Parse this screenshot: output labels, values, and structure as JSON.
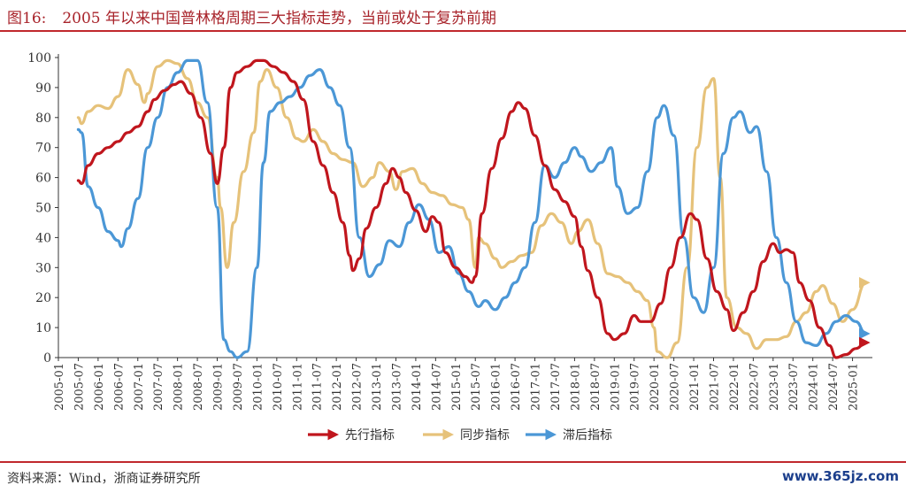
{
  "header": {
    "figure_no": "图16:",
    "title": "2005 年以来中国普林格周期三大指标走势，当前或处于复苏前期"
  },
  "footer": {
    "source": "资料来源：Wind，浙商证券研究所",
    "watermark": "www.365jz.com"
  },
  "colors": {
    "leading": "#c0161d",
    "coincident": "#e6c27a",
    "lagging": "#4b97d6",
    "title": "#a8232a",
    "axis": "#333333"
  },
  "chart_data": {
    "type": "line",
    "ylim": [
      0,
      100
    ],
    "yticks": [
      0,
      10,
      20,
      30,
      40,
      50,
      60,
      70,
      80,
      90,
      100
    ],
    "x_start": "2005-01",
    "x_end": "2025-07",
    "xticks": [
      "2005-01",
      "2005-07",
      "2006-01",
      "2006-07",
      "2007-01",
      "2007-07",
      "2008-01",
      "2008-07",
      "2009-01",
      "2009-07",
      "2010-01",
      "2010-07",
      "2011-01",
      "2011-07",
      "2012-01",
      "2012-07",
      "2013-01",
      "2013-07",
      "2014-01",
      "2014-07",
      "2015-01",
      "2015-07",
      "2016-01",
      "2016-07",
      "2017-01",
      "2017-07",
      "2018-01",
      "2018-07",
      "2019-01",
      "2019-07",
      "2020-01",
      "2020-07",
      "2021-01",
      "2021-07",
      "2022-01",
      "2022-07",
      "2023-01",
      "2023-07",
      "2024-01",
      "2024-07",
      "2025-01"
    ],
    "legend_position": "bottom-center",
    "series": [
      {
        "name": "先行指标",
        "color": "#c0161d",
        "arrow": true,
        "points": [
          [
            "2005-07",
            59
          ],
          [
            "2005-08",
            58
          ],
          [
            "2005-10",
            64
          ],
          [
            "2006-01",
            68
          ],
          [
            "2006-04",
            70
          ],
          [
            "2006-07",
            72
          ],
          [
            "2006-10",
            75
          ],
          [
            "2007-01",
            77
          ],
          [
            "2007-04",
            82
          ],
          [
            "2007-06",
            86
          ],
          [
            "2007-09",
            89
          ],
          [
            "2007-12",
            91
          ],
          [
            "2008-02",
            92
          ],
          [
            "2008-05",
            88
          ],
          [
            "2008-08",
            80
          ],
          [
            "2008-11",
            68
          ],
          [
            "2009-01",
            58
          ],
          [
            "2009-03",
            70
          ],
          [
            "2009-05",
            90
          ],
          [
            "2009-07",
            95
          ],
          [
            "2009-10",
            97
          ],
          [
            "2010-01",
            99
          ],
          [
            "2010-03",
            99
          ],
          [
            "2010-06",
            97
          ],
          [
            "2010-09",
            95
          ],
          [
            "2010-12",
            92
          ],
          [
            "2011-03",
            86
          ],
          [
            "2011-06",
            72
          ],
          [
            "2011-09",
            64
          ],
          [
            "2011-12",
            55
          ],
          [
            "2012-03",
            45
          ],
          [
            "2012-05",
            34
          ],
          [
            "2012-06",
            29
          ],
          [
            "2012-08",
            33
          ],
          [
            "2012-10",
            43
          ],
          [
            "2013-01",
            50
          ],
          [
            "2013-04",
            58
          ],
          [
            "2013-06",
            63
          ],
          [
            "2013-08",
            60
          ],
          [
            "2013-10",
            55
          ],
          [
            "2014-01",
            49
          ],
          [
            "2014-04",
            42
          ],
          [
            "2014-06",
            47
          ],
          [
            "2014-08",
            45
          ],
          [
            "2014-10",
            35
          ],
          [
            "2015-01",
            30
          ],
          [
            "2015-04",
            27
          ],
          [
            "2015-06",
            25
          ],
          [
            "2015-07",
            27
          ],
          [
            "2015-09",
            48
          ],
          [
            "2015-12",
            63
          ],
          [
            "2016-03",
            73
          ],
          [
            "2016-06",
            82
          ],
          [
            "2016-08",
            85
          ],
          [
            "2016-10",
            83
          ],
          [
            "2017-01",
            74
          ],
          [
            "2017-04",
            64
          ],
          [
            "2017-07",
            56
          ],
          [
            "2017-10",
            52
          ],
          [
            "2018-01",
            47
          ],
          [
            "2018-03",
            37
          ],
          [
            "2018-05",
            29
          ],
          [
            "2018-08",
            20
          ],
          [
            "2018-11",
            8
          ],
          [
            "2019-01",
            6
          ],
          [
            "2019-04",
            8
          ],
          [
            "2019-07",
            14
          ],
          [
            "2019-09",
            12
          ],
          [
            "2019-12",
            12
          ],
          [
            "2020-03",
            18
          ],
          [
            "2020-06",
            30
          ],
          [
            "2020-09",
            40
          ],
          [
            "2020-12",
            48
          ],
          [
            "2021-02",
            46
          ],
          [
            "2021-05",
            33
          ],
          [
            "2021-08",
            22
          ],
          [
            "2021-11",
            16
          ],
          [
            "2022-01",
            9
          ],
          [
            "2022-04",
            15
          ],
          [
            "2022-07",
            22
          ],
          [
            "2022-10",
            32
          ],
          [
            "2023-01",
            38
          ],
          [
            "2023-03",
            35
          ],
          [
            "2023-05",
            36
          ],
          [
            "2023-07",
            35
          ],
          [
            "2023-09",
            25
          ],
          [
            "2023-12",
            19
          ],
          [
            "2024-03",
            10
          ],
          [
            "2024-06",
            4
          ],
          [
            "2024-08",
            0
          ],
          [
            "2024-11",
            1
          ],
          [
            "2025-02",
            3
          ],
          [
            "2025-05",
            5
          ]
        ]
      },
      {
        "name": "同步指标",
        "color": "#e6c27a",
        "arrow": true,
        "points": [
          [
            "2005-07",
            80
          ],
          [
            "2005-08",
            78
          ],
          [
            "2005-10",
            82
          ],
          [
            "2006-01",
            84
          ],
          [
            "2006-04",
            83
          ],
          [
            "2006-07",
            87
          ],
          [
            "2006-10",
            96
          ],
          [
            "2007-01",
            91
          ],
          [
            "2007-03",
            85
          ],
          [
            "2007-04",
            88
          ],
          [
            "2007-07",
            97
          ],
          [
            "2007-10",
            99
          ],
          [
            "2008-01",
            98
          ],
          [
            "2008-04",
            93
          ],
          [
            "2008-07",
            85
          ],
          [
            "2008-10",
            80
          ],
          [
            "2009-01",
            60
          ],
          [
            "2009-02",
            50
          ],
          [
            "2009-04",
            30
          ],
          [
            "2009-06",
            45
          ],
          [
            "2009-09",
            62
          ],
          [
            "2009-12",
            75
          ],
          [
            "2010-02",
            92
          ],
          [
            "2010-04",
            96
          ],
          [
            "2010-07",
            90
          ],
          [
            "2010-10",
            80
          ],
          [
            "2011-01",
            73
          ],
          [
            "2011-03",
            72
          ],
          [
            "2011-06",
            76
          ],
          [
            "2011-09",
            72
          ],
          [
            "2011-12",
            68
          ],
          [
            "2012-03",
            66
          ],
          [
            "2012-06",
            65
          ],
          [
            "2012-09",
            57
          ],
          [
            "2012-12",
            60
          ],
          [
            "2013-02",
            65
          ],
          [
            "2013-05",
            62
          ],
          [
            "2013-07",
            56
          ],
          [
            "2013-09",
            62
          ],
          [
            "2013-12",
            63
          ],
          [
            "2014-03",
            58
          ],
          [
            "2014-06",
            55
          ],
          [
            "2014-09",
            54
          ],
          [
            "2014-12",
            51
          ],
          [
            "2015-03",
            50
          ],
          [
            "2015-05",
            46
          ],
          [
            "2015-07",
            30
          ],
          [
            "2015-08",
            40
          ],
          [
            "2015-10",
            38
          ],
          [
            "2016-01",
            33
          ],
          [
            "2016-03",
            30
          ],
          [
            "2016-06",
            32
          ],
          [
            "2016-09",
            34
          ],
          [
            "2016-12",
            35
          ],
          [
            "2017-03",
            44
          ],
          [
            "2017-06",
            48
          ],
          [
            "2017-09",
            45
          ],
          [
            "2017-12",
            38
          ],
          [
            "2018-02",
            42
          ],
          [
            "2018-05",
            46
          ],
          [
            "2018-08",
            38
          ],
          [
            "2018-11",
            28
          ],
          [
            "2019-02",
            27
          ],
          [
            "2019-05",
            25
          ],
          [
            "2019-08",
            22
          ],
          [
            "2019-11",
            19
          ],
          [
            "2020-01",
            10
          ],
          [
            "2020-02",
            2
          ],
          [
            "2020-05",
            0
          ],
          [
            "2020-08",
            5
          ],
          [
            "2020-11",
            30
          ],
          [
            "2021-02",
            70
          ],
          [
            "2021-05",
            90
          ],
          [
            "2021-07",
            93
          ],
          [
            "2021-09",
            60
          ],
          [
            "2021-11",
            20
          ],
          [
            "2022-02",
            10
          ],
          [
            "2022-05",
            8
          ],
          [
            "2022-08",
            3
          ],
          [
            "2022-11",
            6
          ],
          [
            "2023-02",
            6
          ],
          [
            "2023-05",
            7
          ],
          [
            "2023-08",
            12
          ],
          [
            "2023-11",
            15
          ],
          [
            "2024-02",
            22
          ],
          [
            "2024-04",
            24
          ],
          [
            "2024-07",
            18
          ],
          [
            "2024-10",
            12
          ],
          [
            "2025-01",
            16
          ],
          [
            "2025-05",
            25
          ]
        ]
      },
      {
        "name": "滞后指标",
        "color": "#4b97d6",
        "arrow": true,
        "points": [
          [
            "2005-07",
            76
          ],
          [
            "2005-08",
            75
          ],
          [
            "2005-10",
            57
          ],
          [
            "2006-01",
            50
          ],
          [
            "2006-04",
            42
          ],
          [
            "2006-07",
            39
          ],
          [
            "2006-08",
            37
          ],
          [
            "2006-10",
            43
          ],
          [
            "2007-01",
            53
          ],
          [
            "2007-04",
            70
          ],
          [
            "2007-07",
            80
          ],
          [
            "2007-10",
            90
          ],
          [
            "2008-01",
            95
          ],
          [
            "2008-04",
            99
          ],
          [
            "2008-07",
            99
          ],
          [
            "2008-10",
            85
          ],
          [
            "2009-01",
            50
          ],
          [
            "2009-03",
            6
          ],
          [
            "2009-05",
            2
          ],
          [
            "2009-07",
            0
          ],
          [
            "2009-10",
            2
          ],
          [
            "2010-01",
            30
          ],
          [
            "2010-03",
            65
          ],
          [
            "2010-05",
            82
          ],
          [
            "2010-08",
            85
          ],
          [
            "2010-11",
            87
          ],
          [
            "2011-02",
            90
          ],
          [
            "2011-05",
            94
          ],
          [
            "2011-08",
            96
          ],
          [
            "2011-11",
            90
          ],
          [
            "2012-02",
            84
          ],
          [
            "2012-05",
            70
          ],
          [
            "2012-08",
            40
          ],
          [
            "2012-11",
            27
          ],
          [
            "2013-02",
            31
          ],
          [
            "2013-05",
            39
          ],
          [
            "2013-08",
            37
          ],
          [
            "2013-11",
            45
          ],
          [
            "2014-02",
            51
          ],
          [
            "2014-05",
            46
          ],
          [
            "2014-08",
            35
          ],
          [
            "2014-11",
            37
          ],
          [
            "2015-02",
            28
          ],
          [
            "2015-05",
            22
          ],
          [
            "2015-08",
            17
          ],
          [
            "2015-10",
            19
          ],
          [
            "2016-01",
            16
          ],
          [
            "2016-04",
            20
          ],
          [
            "2016-07",
            25
          ],
          [
            "2016-10",
            30
          ],
          [
            "2017-01",
            45
          ],
          [
            "2017-04",
            64
          ],
          [
            "2017-07",
            60
          ],
          [
            "2017-10",
            65
          ],
          [
            "2018-01",
            70
          ],
          [
            "2018-03",
            67
          ],
          [
            "2018-06",
            62
          ],
          [
            "2018-09",
            65
          ],
          [
            "2018-12",
            70
          ],
          [
            "2019-02",
            57
          ],
          [
            "2019-05",
            48
          ],
          [
            "2019-08",
            50
          ],
          [
            "2019-11",
            62
          ],
          [
            "2020-02",
            80
          ],
          [
            "2020-04",
            84
          ],
          [
            "2020-07",
            74
          ],
          [
            "2020-10",
            40
          ],
          [
            "2021-01",
            20
          ],
          [
            "2021-04",
            15
          ],
          [
            "2021-07",
            30
          ],
          [
            "2021-10",
            68
          ],
          [
            "2022-01",
            80
          ],
          [
            "2022-03",
            82
          ],
          [
            "2022-06",
            75
          ],
          [
            "2022-08",
            77
          ],
          [
            "2022-11",
            62
          ],
          [
            "2023-02",
            40
          ],
          [
            "2023-05",
            25
          ],
          [
            "2023-08",
            12
          ],
          [
            "2023-11",
            5
          ],
          [
            "2024-02",
            4
          ],
          [
            "2024-05",
            8
          ],
          [
            "2024-08",
            12
          ],
          [
            "2024-11",
            14
          ],
          [
            "2025-02",
            12
          ],
          [
            "2025-05",
            8
          ]
        ]
      }
    ]
  }
}
